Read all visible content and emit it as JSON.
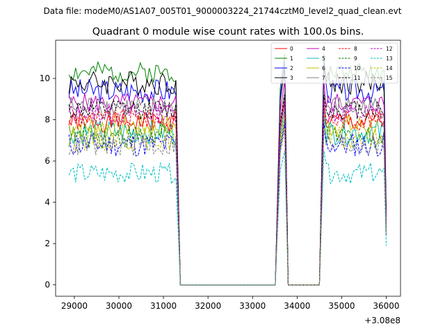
{
  "suptitle": "Data file: modeM0/AS1A07_005T01_9000003224_21744cztM0_level2_quad_clean.evt",
  "chart_data": {
    "type": "line",
    "title": "Quadrant 0 module wise count rates with 100.0s bins.",
    "xlabel": "",
    "ylabel": "",
    "x_offset_label": "+3.08e8",
    "xlim": [
      28580,
      36320
    ],
    "ylim": [
      -0.55,
      11.85
    ],
    "x_ticks": [
      29000,
      30000,
      31000,
      32000,
      33000,
      34000,
      35000,
      36000
    ],
    "x_tick_labels": [
      "29000",
      "30000",
      "31000",
      "32000",
      "33000",
      "34000",
      "35000",
      "36000"
    ],
    "y_ticks": [
      0,
      2,
      4,
      6,
      8,
      10
    ],
    "y_tick_labels": [
      "0",
      "2",
      "4",
      "6",
      "8",
      "10"
    ],
    "legend_position": "upper-right",
    "segments": [
      {
        "start": 28880,
        "end": 31280,
        "fall_to": 31380
      },
      {
        "start": 33620,
        "end": 33720,
        "rise_from": 33510,
        "fall_to": 33800
      },
      {
        "start": 34600,
        "end": 35980,
        "rise_from": 34500,
        "fall_to": 36000
      }
    ],
    "zero_ranges": [
      [
        31380,
        33510
      ],
      [
        33800,
        34500
      ]
    ],
    "series": [
      {
        "name": "0",
        "color": "#ff0000",
        "dash": "solid",
        "mean": 7.9,
        "variation": 0.25,
        "seed": 1,
        "peak": 9.0
      },
      {
        "name": "1",
        "color": "#008000",
        "dash": "solid",
        "mean": 10.3,
        "variation": 0.25,
        "seed": 2,
        "peak": 11.2
      },
      {
        "name": "2",
        "color": "#0000ff",
        "dash": "solid",
        "mean": 9.4,
        "variation": 0.3,
        "seed": 3,
        "peak": 10.8
      },
      {
        "name": "3",
        "color": "#000000",
        "dash": "solid",
        "mean": 9.8,
        "variation": 0.3,
        "seed": 4,
        "peak": 10.5
      },
      {
        "name": "4",
        "color": "#bf00bf",
        "dash": "solid",
        "mean": 8.8,
        "variation": 0.25,
        "seed": 5,
        "peak": 9.9
      },
      {
        "name": "5",
        "color": "#00bfbf",
        "dash": "solid",
        "mean": 7.4,
        "variation": 0.3,
        "seed": 6,
        "peak": 8.5
      },
      {
        "name": "6",
        "color": "#bfbf00",
        "dash": "solid",
        "mean": 7.7,
        "variation": 0.3,
        "seed": 7,
        "peak": 8.3
      },
      {
        "name": "7",
        "color": "#808080",
        "dash": "solid",
        "mean": 8.6,
        "variation": 0.3,
        "seed": 8,
        "peak": 9.4
      },
      {
        "name": "8",
        "color": "#ff0000",
        "dash": "dashed",
        "mean": 8.0,
        "variation": 0.25,
        "seed": 9,
        "peak": 8.8
      },
      {
        "name": "9",
        "color": "#008000",
        "dash": "dashed",
        "mean": 7.2,
        "variation": 0.3,
        "seed": 10,
        "peak": 8.0
      },
      {
        "name": "10",
        "color": "#0000ff",
        "dash": "dashed",
        "mean": 6.8,
        "variation": 0.3,
        "seed": 11,
        "peak": 7.8
      },
      {
        "name": "11",
        "color": "#000000",
        "dash": "dashed",
        "mean": 8.5,
        "variation": 0.25,
        "seed": 12,
        "peak": 9.2
      },
      {
        "name": "12",
        "color": "#bf00bf",
        "dash": "dashed",
        "mean": 8.3,
        "variation": 0.25,
        "seed": 13,
        "peak": 8.9
      },
      {
        "name": "13",
        "color": "#00bfbf",
        "dash": "dashed",
        "mean": 5.4,
        "variation": 0.25,
        "seed": 14,
        "peak": 6.5
      },
      {
        "name": "14",
        "color": "#bfbf00",
        "dash": "dashed",
        "mean": 7.1,
        "variation": 0.3,
        "seed": 15,
        "peak": 7.6
      },
      {
        "name": "15",
        "color": "#808080",
        "dash": "dashed",
        "mean": 6.8,
        "variation": 0.3,
        "seed": 16,
        "peak": 7.5
      }
    ]
  }
}
